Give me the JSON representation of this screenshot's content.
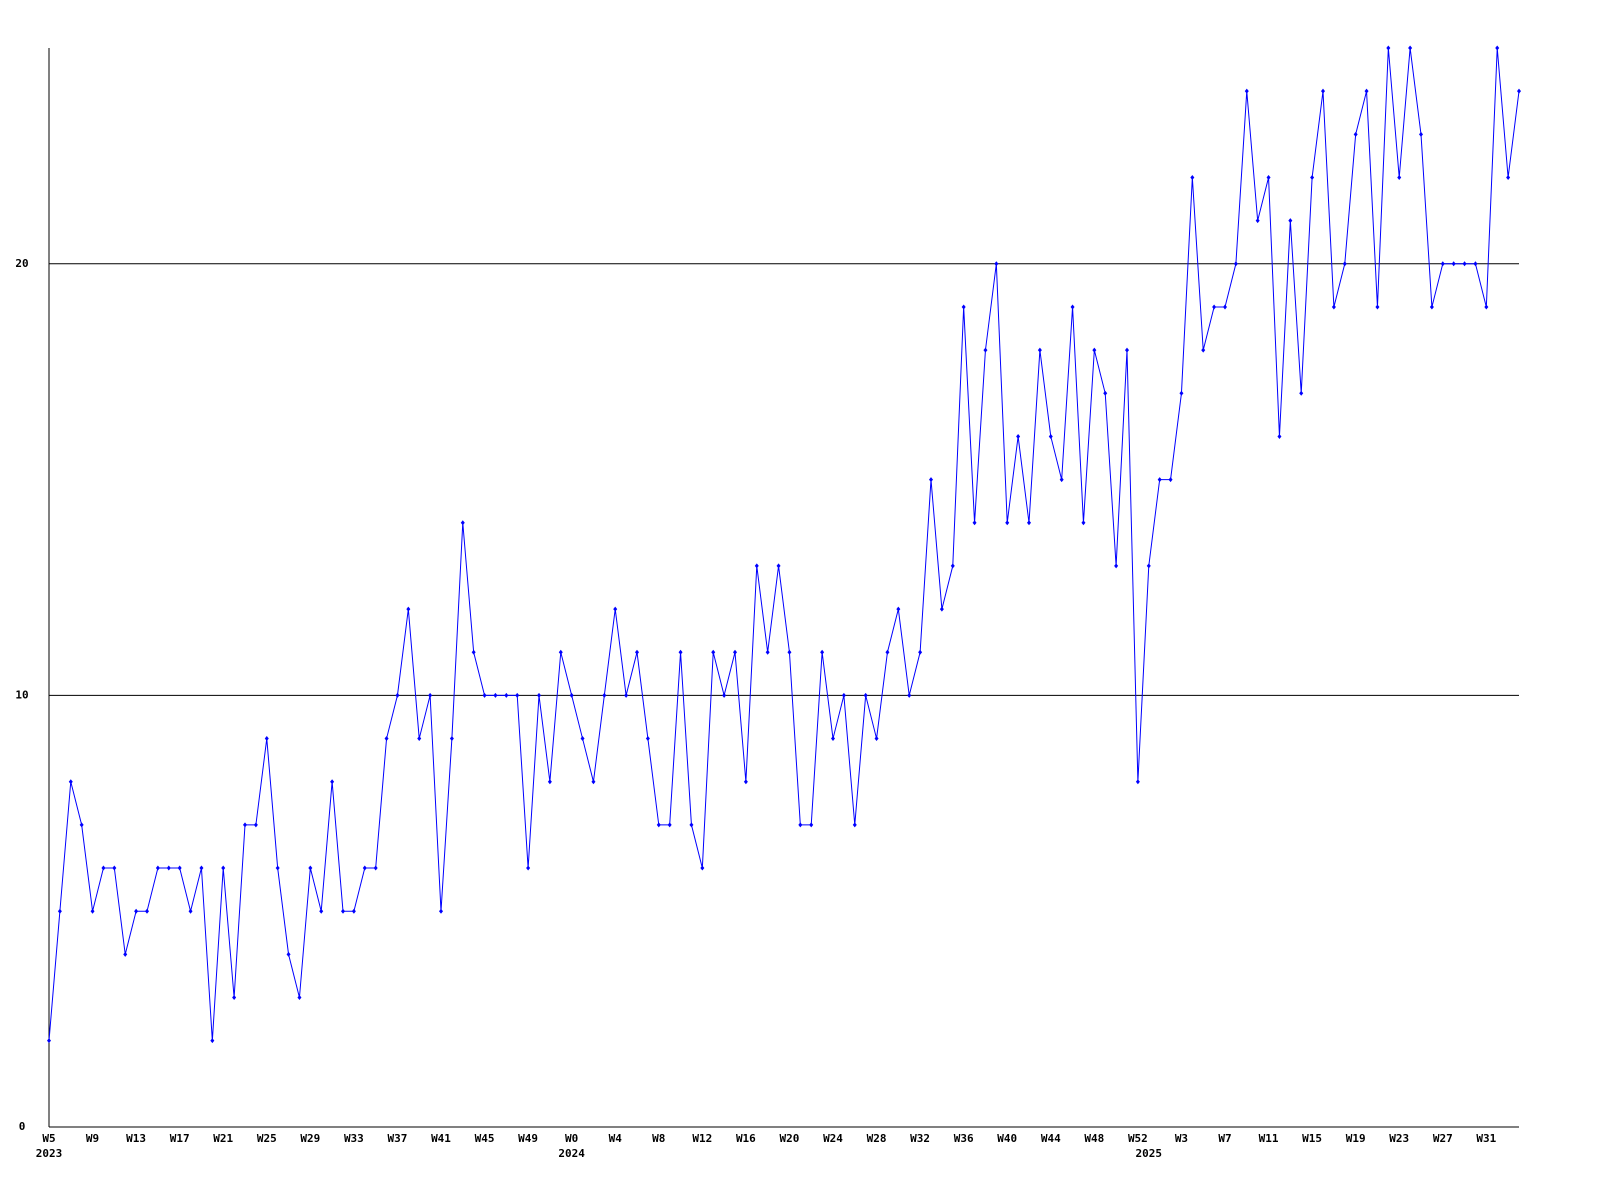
{
  "chart_data": {
    "type": "line",
    "categories": [
      "W5",
      null,
      null,
      null,
      "W9",
      null,
      null,
      null,
      "W13",
      null,
      null,
      null,
      "W17",
      null,
      null,
      null,
      "W21",
      null,
      null,
      null,
      "W25",
      null,
      null,
      null,
      "W29",
      null,
      null,
      null,
      "W33",
      null,
      null,
      null,
      "W37",
      null,
      null,
      null,
      "W41",
      null,
      null,
      null,
      "W45",
      null,
      null,
      null,
      "W49",
      null,
      null,
      null,
      "W0",
      null,
      null,
      null,
      "W4",
      null,
      null,
      null,
      "W8",
      null,
      null,
      null,
      "W12",
      null,
      null,
      null,
      "W16",
      null,
      null,
      null,
      "W20",
      null,
      null,
      null,
      "W24",
      null,
      null,
      null,
      "W28",
      null,
      null,
      null,
      "W32",
      null,
      null,
      null,
      "W36",
      null,
      null,
      null,
      "W40",
      null,
      null,
      null,
      "W44",
      null,
      null,
      null,
      "W48",
      null,
      null,
      null,
      "W52",
      null,
      null,
      null,
      "W3",
      null,
      null,
      null,
      "W7",
      null,
      null,
      null,
      "W11",
      null,
      null,
      null,
      "W15",
      null,
      null,
      null,
      "W19",
      null,
      null,
      null,
      "W23",
      null,
      null,
      null,
      "W27",
      null,
      null,
      null,
      "W31",
      null,
      null,
      null
    ],
    "category_years": [
      "2023",
      null,
      null,
      null,
      null,
      null,
      null,
      null,
      null,
      null,
      null,
      null,
      null,
      null,
      null,
      null,
      null,
      null,
      null,
      null,
      null,
      null,
      null,
      null,
      null,
      null,
      null,
      null,
      null,
      null,
      null,
      null,
      null,
      null,
      null,
      null,
      null,
      null,
      null,
      null,
      null,
      null,
      null,
      null,
      null,
      null,
      null,
      null,
      "2024",
      null,
      null,
      null,
      null,
      null,
      null,
      null,
      null,
      null,
      null,
      null,
      null,
      null,
      null,
      null,
      null,
      null,
      null,
      null,
      null,
      null,
      null,
      null,
      null,
      null,
      null,
      null,
      null,
      null,
      null,
      null,
      null,
      null,
      null,
      null,
      null,
      null,
      null,
      null,
      null,
      null,
      null,
      null,
      null,
      null,
      null,
      null,
      null,
      null,
      null,
      null,
      null,
      "2025",
      null,
      null,
      null,
      null,
      null,
      null,
      null,
      null,
      null,
      null,
      null,
      null,
      null,
      null,
      null,
      null,
      null,
      null,
      null,
      null,
      null,
      null,
      null,
      null,
      null,
      null,
      null,
      null,
      null,
      null,
      null,
      null,
      null,
      null
    ],
    "values": [
      2,
      5,
      8,
      7,
      5,
      6,
      6,
      4,
      5,
      5,
      6,
      6,
      6,
      5,
      6,
      2,
      6,
      3,
      7,
      7,
      9,
      6,
      4,
      3,
      6,
      5,
      8,
      5,
      5,
      6,
      6,
      9,
      10,
      12,
      9,
      10,
      5,
      9,
      14,
      11,
      10,
      10,
      10,
      10,
      6,
      10,
      8,
      11,
      10,
      9,
      8,
      10,
      12,
      10,
      11,
      9,
      7,
      7,
      11,
      7,
      6,
      11,
      10,
      11,
      8,
      13,
      11,
      13,
      11,
      7,
      7,
      11,
      9,
      10,
      7,
      10,
      9,
      11,
      12,
      10,
      11,
      15,
      12,
      13,
      19,
      14,
      18,
      20,
      14,
      16,
      14,
      18,
      16,
      15,
      19,
      14,
      18,
      17,
      13,
      18,
      8,
      13,
      15,
      15,
      17,
      22,
      18,
      19,
      19,
      20,
      24,
      21,
      22,
      16,
      21,
      17,
      22,
      24,
      19,
      20,
      23,
      24,
      19,
      25,
      22,
      25,
      23,
      19,
      20,
      20,
      20,
      20,
      19,
      25,
      22,
      24
    ],
    "color": "#0000ff",
    "ylim": [
      0,
      25
    ],
    "yticks": [
      0,
      10,
      20
    ],
    "grid": true
  }
}
